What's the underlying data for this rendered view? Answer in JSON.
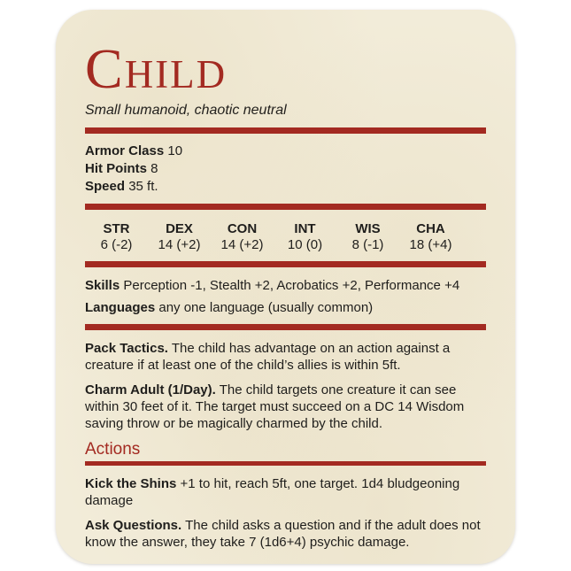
{
  "card": {
    "title": "Child",
    "subtitle": "Small humanoid, chaotic neutral",
    "colors": {
      "accent_red": "#a32a21",
      "card_background": "#f2ecd9",
      "body_text": "#1f1e1c",
      "page_background": "#ffffff"
    },
    "core_stats": [
      {
        "label": "Armor Class",
        "value": "10"
      },
      {
        "label": "Hit Points",
        "value": "8"
      },
      {
        "label": "Speed",
        "value": "35 ft."
      }
    ],
    "abilities": [
      {
        "name": "STR",
        "value": "6 (-2)"
      },
      {
        "name": "DEX",
        "value": "14 (+2)"
      },
      {
        "name": "CON",
        "value": "14 (+2)"
      },
      {
        "name": "INT",
        "value": "10 (0)"
      },
      {
        "name": "WIS",
        "value": "8 (-1)"
      },
      {
        "name": "CHA",
        "value": "18 (+4)"
      }
    ],
    "details": [
      {
        "label": "Skills",
        "value": "Perception -1, Stealth +2, Acrobatics +2, Performance +4"
      },
      {
        "label": "Languages",
        "value": "any one language (usually common)"
      }
    ],
    "traits": [
      {
        "name": "Pack Tactics.",
        "text": "The child has advantage on an action against a creature if at least one of the child’s allies is within 5ft."
      },
      {
        "name": "Charm Adult (1/Day).",
        "text": "The child targets one creature it can see within 30 feet of it. The target must succeed on a DC 14 Wisdom saving throw or be magically charmed by the child."
      }
    ],
    "actions_header": "Actions",
    "actions": [
      {
        "name": "Kick the Shins",
        "text": "+1 to hit, reach 5ft, one target. 1d4 bludgeoning damage"
      },
      {
        "name": "Ask Questions.",
        "text": "The child asks a question and if the adult does not know the answer, they take 7 (1d6+4) psychic damage."
      }
    ]
  }
}
